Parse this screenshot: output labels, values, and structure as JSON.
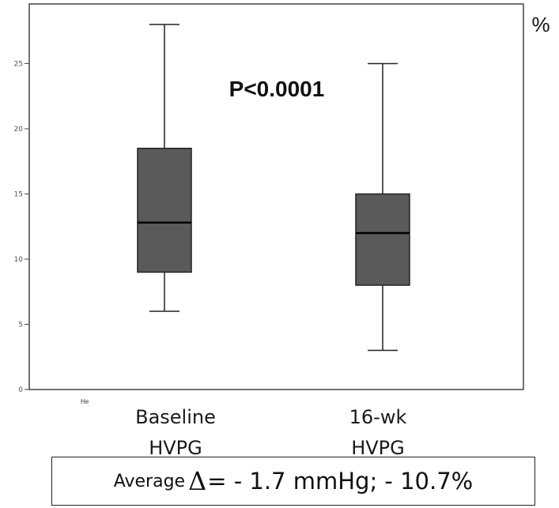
{
  "chart_data": {
    "type": "box",
    "annotation": "P<0.0001",
    "unit_mark": "%",
    "corner_mark": "He",
    "ylim": [
      0,
      30
    ],
    "yticks": [
      0,
      5,
      10,
      15,
      20,
      25
    ],
    "categories": [
      {
        "line1": "Baseline",
        "line2": "HVPG"
      },
      {
        "line1": "16-wk",
        "line2": "HVPG"
      }
    ],
    "boxes": [
      {
        "min": 6,
        "q1": 9,
        "median": 12.8,
        "q3": 18.5,
        "max": 28
      },
      {
        "min": 3,
        "q1": 8,
        "median": 12,
        "q3": 15,
        "max": 25
      }
    ],
    "box_color": "#5a5a5a",
    "footer": {
      "prefix": "Average ",
      "delta_symbol": "Δ",
      "text": "= - 1.7 mmHg; - 10.7%"
    }
  }
}
